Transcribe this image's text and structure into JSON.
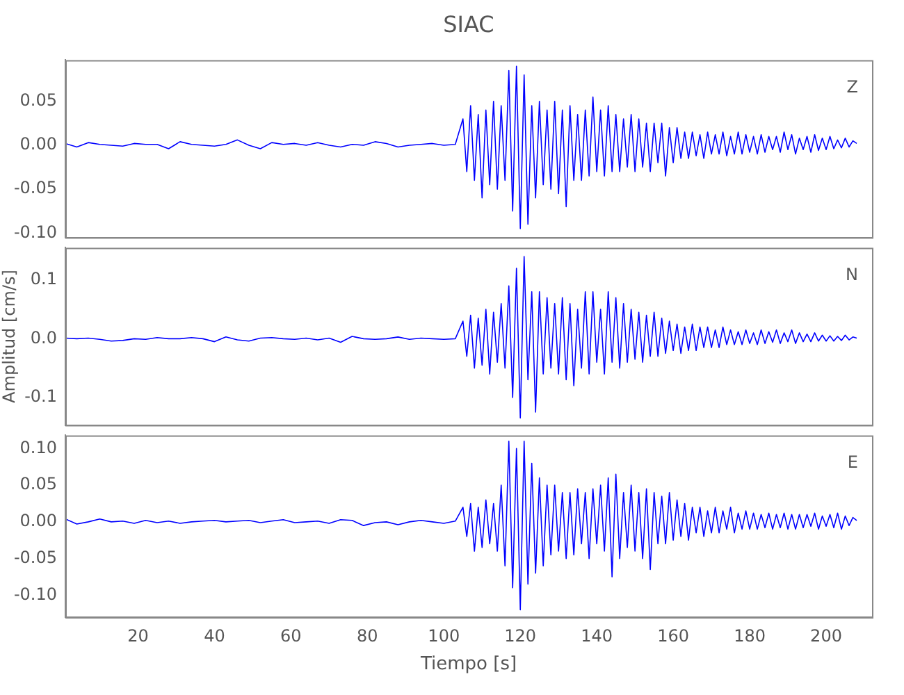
{
  "chart_data": [
    {
      "type": "line",
      "title": "SIAC",
      "annotations": [
        "Z"
      ],
      "tick_labels": "y",
      "grid": false,
      "marker": "none",
      "xlim": [
        1,
        212
      ],
      "xticks": [
        20,
        40,
        60,
        80,
        100,
        120,
        140,
        160,
        180,
        200
      ],
      "ylim": [
        -0.105,
        0.097
      ],
      "yticks": [
        {
          "value": -0.1,
          "label": "-0.10"
        },
        {
          "value": -0.05,
          "label": "-0.05"
        },
        {
          "value": 0,
          "label": "0.00"
        },
        {
          "value": 0.05,
          "label": "0.05"
        }
      ],
      "x": [
        1,
        4,
        7,
        10,
        13,
        16,
        19,
        22,
        25,
        28,
        31,
        34,
        37,
        40,
        43,
        46,
        49,
        52,
        55,
        58,
        61,
        64,
        67,
        70,
        73,
        76,
        79,
        82,
        85,
        88,
        91,
        94,
        97,
        100,
        103,
        105,
        106,
        107,
        108,
        109,
        110,
        111,
        112,
        113,
        114,
        115,
        116,
        117,
        118,
        119,
        120,
        121,
        122,
        123,
        124,
        125,
        126,
        127,
        128,
        129,
        130,
        131,
        132,
        133,
        134,
        135,
        136,
        137,
        138,
        139,
        140,
        141,
        142,
        143,
        144,
        145,
        146,
        147,
        148,
        149,
        150,
        151,
        152,
        153,
        154,
        155,
        156,
        157,
        158,
        159,
        160,
        161,
        162,
        163,
        164,
        165,
        166,
        167,
        168,
        169,
        170,
        171,
        172,
        173,
        174,
        175,
        176,
        177,
        178,
        179,
        180,
        181,
        182,
        183,
        184,
        185,
        186,
        187,
        188,
        189,
        190,
        191,
        192,
        193,
        194,
        195,
        196,
        197,
        198,
        199,
        200,
        201,
        202,
        203,
        204,
        205,
        206,
        207,
        208
      ],
      "series": [
        {
          "color": "#0000ff",
          "values": [
            0.002,
            -0.002,
            0.003,
            0.001,
            0,
            -0.001,
            0.002,
            0.001,
            0.001,
            -0.004,
            0.004,
            0.001,
            0,
            -0.001,
            0.001,
            0.006,
            0,
            -0.004,
            0.003,
            0.001,
            0.002,
            0,
            0.003,
            0,
            -0.002,
            0.001,
            0,
            0.004,
            0.002,
            -0.002,
            0,
            0.001,
            0.002,
            0,
            0.001,
            0.03,
            -0.03,
            0.045,
            -0.04,
            0.035,
            -0.06,
            0.04,
            -0.045,
            0.05,
            -0.05,
            0.045,
            -0.04,
            0.085,
            -0.075,
            0.09,
            -0.095,
            0.08,
            -0.09,
            0.045,
            -0.06,
            0.05,
            -0.045,
            0.04,
            -0.05,
            0.05,
            -0.055,
            0.04,
            -0.07,
            0.045,
            -0.04,
            0.035,
            -0.04,
            0.04,
            -0.035,
            0.055,
            -0.03,
            0.04,
            -0.035,
            0.045,
            -0.03,
            0.035,
            -0.03,
            0.03,
            -0.025,
            0.035,
            -0.03,
            0.03,
            -0.025,
            0.025,
            -0.03,
            0.025,
            -0.02,
            0.025,
            -0.035,
            0.02,
            -0.02,
            0.02,
            -0.015,
            0.015,
            -0.015,
            0.015,
            -0.012,
            0.012,
            -0.015,
            0.015,
            -0.01,
            0.012,
            -0.01,
            0.015,
            -0.012,
            0.01,
            -0.01,
            0.015,
            -0.01,
            0.012,
            -0.008,
            0.01,
            -0.01,
            0.012,
            -0.008,
            0.01,
            -0.005,
            0.01,
            -0.008,
            0.015,
            -0.005,
            0.012,
            -0.01,
            0.008,
            -0.005,
            0.01,
            -0.008,
            0.012,
            -0.006,
            0.008,
            -0.005,
            0.01,
            -0.004,
            0.006,
            -0.003,
            0.008,
            -0.002,
            0.005,
            0.002
          ]
        }
      ]
    },
    {
      "type": "line",
      "ylabel": "Amplitud [cm/s]",
      "annotations": [
        "N"
      ],
      "tick_labels": "y",
      "grid": false,
      "marker": "none",
      "xlim": [
        1,
        212
      ],
      "xticks": [
        20,
        40,
        60,
        80,
        100,
        120,
        140,
        160,
        180,
        200
      ],
      "ylim": [
        -0.147,
        0.155
      ],
      "yticks": [
        {
          "value": -0.1,
          "label": "-0.1"
        },
        {
          "value": 0,
          "label": "0.0"
        },
        {
          "value": 0.1,
          "label": "0.1"
        }
      ],
      "x": [
        1,
        4,
        7,
        10,
        13,
        16,
        19,
        22,
        25,
        28,
        31,
        34,
        37,
        40,
        43,
        46,
        49,
        52,
        55,
        58,
        61,
        64,
        67,
        70,
        73,
        76,
        79,
        82,
        85,
        88,
        91,
        94,
        97,
        100,
        103,
        105,
        106,
        107,
        108,
        109,
        110,
        111,
        112,
        113,
        114,
        115,
        116,
        117,
        118,
        119,
        120,
        121,
        122,
        123,
        124,
        125,
        126,
        127,
        128,
        129,
        130,
        131,
        132,
        133,
        134,
        135,
        136,
        137,
        138,
        139,
        140,
        141,
        142,
        143,
        144,
        145,
        146,
        147,
        148,
        149,
        150,
        151,
        152,
        153,
        154,
        155,
        156,
        157,
        158,
        159,
        160,
        161,
        162,
        163,
        164,
        165,
        166,
        167,
        168,
        169,
        170,
        171,
        172,
        173,
        174,
        175,
        176,
        177,
        178,
        179,
        180,
        181,
        182,
        183,
        184,
        185,
        186,
        187,
        188,
        189,
        190,
        191,
        192,
        193,
        194,
        195,
        196,
        197,
        198,
        199,
        200,
        201,
        202,
        203,
        204,
        205,
        206,
        207,
        208
      ],
      "series": [
        {
          "color": "#0000ff",
          "values": [
            0.001,
            0,
            0.001,
            -0.001,
            -0.004,
            -0.003,
            0,
            -0.001,
            0.002,
            0,
            0,
            0.002,
            0,
            -0.005,
            0.003,
            -0.002,
            -0.004,
            0.001,
            0.002,
            0,
            -0.001,
            0.001,
            -0.002,
            0.001,
            -0.006,
            0.004,
            0,
            -0.001,
            0,
            0.003,
            -0.001,
            0.001,
            0,
            -0.001,
            0,
            0.03,
            -0.03,
            0.04,
            -0.05,
            0.035,
            -0.045,
            0.05,
            -0.06,
            0.045,
            -0.04,
            0.06,
            -0.05,
            0.09,
            -0.1,
            0.12,
            -0.135,
            0.14,
            -0.07,
            0.08,
            -0.125,
            0.08,
            -0.06,
            0.07,
            -0.05,
            0.06,
            -0.06,
            0.07,
            -0.07,
            0.06,
            -0.08,
            0.05,
            -0.05,
            0.08,
            -0.06,
            0.08,
            -0.04,
            0.05,
            -0.06,
            0.08,
            -0.04,
            0.07,
            -0.05,
            0.06,
            -0.04,
            0.05,
            -0.035,
            0.045,
            -0.04,
            0.04,
            -0.03,
            0.045,
            -0.03,
            0.035,
            -0.025,
            0.03,
            -0.02,
            0.025,
            -0.025,
            0.02,
            -0.02,
            0.025,
            -0.02,
            0.02,
            -0.015,
            0.02,
            -0.015,
            0.015,
            -0.015,
            0.02,
            -0.01,
            0.015,
            -0.01,
            0.012,
            -0.01,
            0.015,
            -0.008,
            0.01,
            -0.01,
            0.015,
            -0.008,
            0.012,
            -0.006,
            0.015,
            -0.008,
            0.01,
            -0.005,
            0.015,
            -0.008,
            0.01,
            -0.005,
            0.008,
            -0.005,
            0.01,
            -0.004,
            0.006,
            -0.004,
            0.005,
            -0.004,
            0.004,
            -0.003,
            0.006,
            -0.002,
            0.003,
            0.001
          ]
        }
      ]
    },
    {
      "type": "line",
      "xlabel": "Tiempo [s]",
      "annotations": [
        "E"
      ],
      "grid": false,
      "marker": "none",
      "xlim": [
        1,
        212
      ],
      "xticks": [
        20,
        40,
        60,
        80,
        100,
        120,
        140,
        160,
        180,
        200
      ],
      "ylim": [
        -0.13,
        0.118
      ],
      "yticks": [
        {
          "value": -0.1,
          "label": "-0.10"
        },
        {
          "value": -0.05,
          "label": "-0.05"
        },
        {
          "value": 0,
          "label": "0.00"
        },
        {
          "value": 0.05,
          "label": "0.05"
        },
        {
          "value": 0.1,
          "label": "0.10"
        }
      ],
      "x": [
        1,
        4,
        7,
        10,
        13,
        16,
        19,
        22,
        25,
        28,
        31,
        34,
        37,
        40,
        43,
        46,
        49,
        52,
        55,
        58,
        61,
        64,
        67,
        70,
        73,
        76,
        79,
        82,
        85,
        88,
        91,
        94,
        97,
        100,
        103,
        105,
        106,
        107,
        108,
        109,
        110,
        111,
        112,
        113,
        114,
        115,
        116,
        117,
        118,
        119,
        120,
        121,
        122,
        123,
        124,
        125,
        126,
        127,
        128,
        129,
        130,
        131,
        132,
        133,
        134,
        135,
        136,
        137,
        138,
        139,
        140,
        141,
        142,
        143,
        144,
        145,
        146,
        147,
        148,
        149,
        150,
        151,
        152,
        153,
        154,
        155,
        156,
        157,
        158,
        159,
        160,
        161,
        162,
        163,
        164,
        165,
        166,
        167,
        168,
        169,
        170,
        171,
        172,
        173,
        174,
        175,
        176,
        177,
        178,
        179,
        180,
        181,
        182,
        183,
        184,
        185,
        186,
        187,
        188,
        189,
        190,
        191,
        192,
        193,
        194,
        195,
        196,
        197,
        198,
        199,
        200,
        201,
        202,
        203,
        204,
        205,
        206,
        207,
        208
      ],
      "series": [
        {
          "color": "#0000ff",
          "values": [
            0.004,
            -0.003,
            0,
            0.004,
            0,
            0.001,
            -0.002,
            0.002,
            -0.001,
            0.001,
            -0.002,
            0,
            0.001,
            0.002,
            0,
            0.001,
            0.002,
            -0.001,
            0.001,
            0.003,
            -0.001,
            0,
            0.001,
            -0.002,
            0.003,
            0.002,
            -0.005,
            -0.001,
            0,
            -0.004,
            0,
            0.002,
            0,
            -0.002,
            0.001,
            0.02,
            -0.02,
            0.025,
            -0.04,
            0.02,
            -0.035,
            0.03,
            -0.03,
            0.025,
            -0.04,
            0.05,
            -0.06,
            0.11,
            -0.09,
            0.1,
            -0.12,
            0.11,
            -0.085,
            0.08,
            -0.07,
            0.06,
            -0.06,
            0.05,
            -0.045,
            0.05,
            -0.04,
            0.04,
            -0.05,
            0.04,
            -0.045,
            0.045,
            -0.03,
            0.04,
            -0.05,
            0.045,
            -0.03,
            0.05,
            -0.04,
            0.06,
            -0.075,
            0.065,
            -0.05,
            0.04,
            -0.035,
            0.05,
            -0.04,
            0.04,
            -0.05,
            0.045,
            -0.065,
            0.04,
            -0.03,
            0.035,
            -0.03,
            0.04,
            -0.025,
            0.03,
            -0.02,
            0.025,
            -0.025,
            0.02,
            -0.015,
            0.02,
            -0.02,
            0.015,
            -0.015,
            0.02,
            -0.015,
            0.015,
            -0.01,
            0.02,
            -0.015,
            0.012,
            -0.01,
            0.015,
            -0.01,
            0.012,
            -0.01,
            0.01,
            -0.008,
            0.012,
            -0.01,
            0.01,
            -0.008,
            0.012,
            -0.01,
            0.01,
            -0.01,
            0.01,
            -0.008,
            0.01,
            -0.006,
            0.012,
            -0.01,
            0.008,
            -0.006,
            0.01,
            -0.008,
            0.012,
            -0.01,
            0.008,
            -0.005,
            0.006,
            0.002
          ]
        }
      ]
    }
  ]
}
